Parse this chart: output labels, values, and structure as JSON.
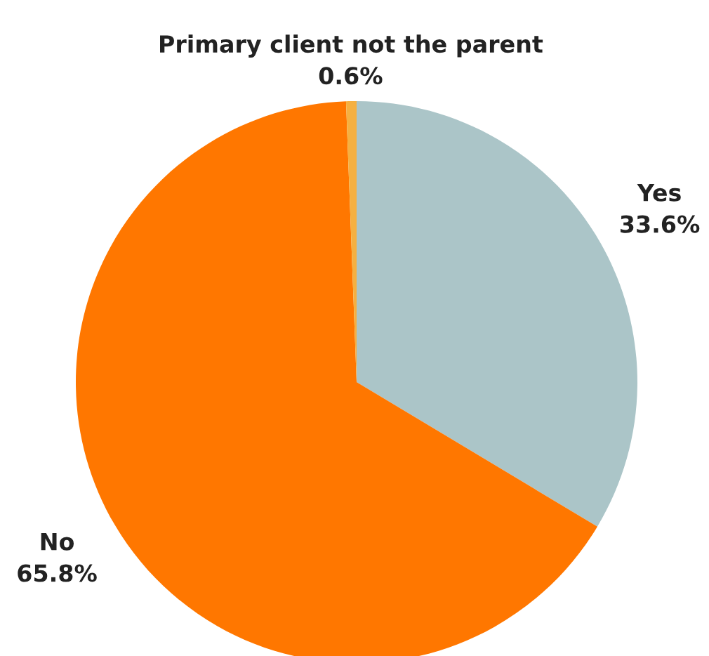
{
  "chart_data": {
    "type": "pie",
    "categories": [
      "Yes",
      "No",
      "Primary client not the parent"
    ],
    "values": [
      33.6,
      65.8,
      0.6
    ],
    "colors": [
      "#abc5c8",
      "#ff7700",
      "#f5b041"
    ],
    "value_labels": [
      "33.6%",
      "65.8%",
      "0.6%"
    ]
  }
}
